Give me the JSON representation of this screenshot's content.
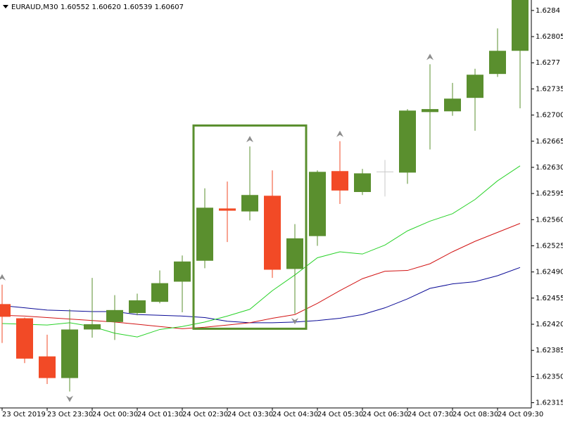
{
  "chart_data": {
    "type": "candlestick",
    "title": "EURAUD,M30",
    "quote": "1.60552 1.60620 1.60539 1.60607",
    "categories": [
      "23 Oct 2019",
      null,
      "23 Oct 23:30",
      null,
      "24 Oct 00:30",
      null,
      "24 Oct 01:30",
      null,
      "24 Oct 02:30",
      null,
      "24 Oct 03:30",
      null,
      "24 Oct 04:30",
      null,
      "24 Oct 05:30",
      null,
      "24 Oct 06:30",
      null,
      "24 Oct 07:30",
      null,
      "24 Oct 08:30",
      null,
      "24 Oct 09:30",
      null
    ],
    "open": [
      1.62447,
      1.62428,
      1.62377,
      1.62348,
      1.62413,
      1.62423,
      1.62435,
      1.6245,
      1.62477,
      1.62505,
      1.62575,
      1.62571,
      1.62592,
      1.62494,
      1.62538,
      1.62625,
      1.62597,
      1.62624,
      1.62623,
      1.62704,
      1.62705,
      1.62723,
      1.62755,
      1.62786
    ],
    "high": [
      1.62473,
      1.62429,
      1.62406,
      1.6244,
      1.62482,
      1.62459,
      1.62461,
      1.62492,
      1.62512,
      1.62602,
      1.62611,
      1.62658,
      1.62626,
      1.62554,
      1.62626,
      1.62665,
      1.62628,
      1.6264,
      1.62708,
      1.62768,
      1.62743,
      1.62762,
      1.62816,
      1.62854
    ],
    "low": [
      1.62395,
      1.62368,
      1.6234,
      1.6233,
      1.62402,
      1.62399,
      1.62432,
      1.62448,
      1.62436,
      1.62495,
      1.6253,
      1.62559,
      1.62482,
      1.62434,
      1.62525,
      1.62581,
      1.62593,
      1.62591,
      1.62608,
      1.62654,
      1.62699,
      1.62679,
      1.62751,
      1.62709
    ],
    "close": [
      1.6243,
      1.62374,
      1.62348,
      1.62413,
      1.6242,
      1.62439,
      1.62452,
      1.62475,
      1.62504,
      1.62576,
      1.62572,
      1.62593,
      1.62493,
      1.62535,
      1.62624,
      1.62599,
      1.62622,
      1.62624,
      1.62706,
      1.62708,
      1.62722,
      1.62754,
      1.62786,
      1.62854
    ],
    "fractal": [
      "up",
      null,
      null,
      "down",
      null,
      null,
      null,
      null,
      null,
      null,
      null,
      "up",
      null,
      "down",
      null,
      "up",
      null,
      null,
      null,
      "up",
      null,
      null,
      null,
      null
    ],
    "up_color": "#5a8f2e",
    "down_color": "#f24a26",
    "doji_color": "#c8c8c8",
    "fractal_color": "#8c8c8c",
    "series": [
      {
        "color": "#0a0a96",
        "values": [
          1.62445,
          1.62442,
          1.62439,
          1.62438,
          1.62437,
          1.62437,
          1.62433,
          1.62432,
          1.62431,
          1.62429,
          1.62424,
          1.62422,
          1.62422,
          1.62423,
          1.62425,
          1.62428,
          1.62433,
          1.62442,
          1.62454,
          1.62468,
          1.62474,
          1.62477,
          1.62485,
          1.62496
        ]
      },
      {
        "color": "#d21414",
        "values": [
          1.62432,
          1.62431,
          1.62429,
          1.62427,
          1.62425,
          1.62423,
          1.6242,
          1.62417,
          1.62414,
          1.62416,
          1.62419,
          1.62422,
          1.62428,
          1.62433,
          1.62448,
          1.62465,
          1.62481,
          1.62491,
          1.62492,
          1.62501,
          1.62517,
          1.62531,
          1.62543,
          1.62555
        ]
      },
      {
        "color": "#28d228",
        "values": [
          1.62421,
          1.6242,
          1.62419,
          1.62422,
          1.62417,
          1.62408,
          1.62403,
          1.62413,
          1.62417,
          1.62423,
          1.62431,
          1.6244,
          1.62465,
          1.62486,
          1.62509,
          1.62517,
          1.62514,
          1.62526,
          1.62545,
          1.62558,
          1.62568,
          1.62587,
          1.62612,
          1.62632
        ]
      }
    ],
    "highlight": {
      "start": 9,
      "end": 13,
      "top": 1.62686,
      "bottom": 1.62414,
      "color": "#5a8f2e"
    },
    "ylim": [
      1.62308,
      1.62854
    ],
    "yticks": [
      1.6284,
      1.62805,
      1.6277,
      1.62735,
      {
        "value": 1.627,
        "label": "1.62700"
      },
      1.62665,
      {
        "value": 1.6263,
        "label": "1.62630"
      },
      1.62595,
      {
        "value": 1.6256,
        "label": "1.62560"
      },
      1.62525,
      {
        "value": 1.6249,
        "label": "1.62490"
      },
      1.62455,
      {
        "value": 1.6242,
        "label": "1.62420"
      },
      1.62385,
      {
        "value": 1.6235,
        "label": "1.62350"
      },
      1.62315
    ]
  }
}
